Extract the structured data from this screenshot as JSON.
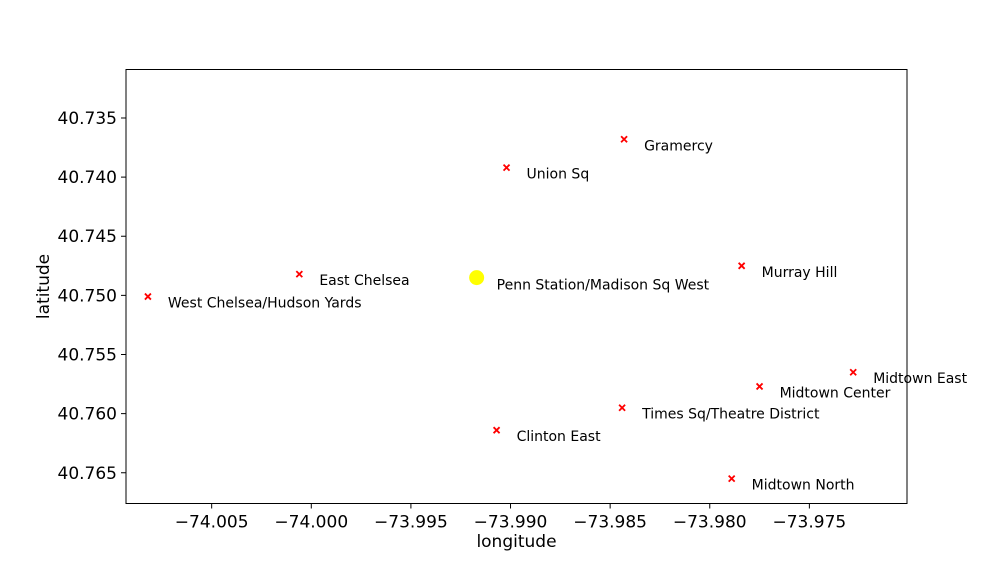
{
  "chart_data": {
    "type": "scatter",
    "title": "",
    "xlabel": "longitude",
    "ylabel": "latitude",
    "xlim": [
      -74.0093,
      -73.9701
    ],
    "ylim": [
      40.7676,
      40.7309
    ],
    "y_inverted": true,
    "xticks": [
      -74.005,
      -74.0,
      -73.995,
      -73.99,
      -73.985,
      -73.98,
      -73.975
    ],
    "xtick_labels": [
      "−74.005",
      "−74.000",
      "−73.995",
      "−73.990",
      "−73.985",
      "−73.980",
      "−73.975"
    ],
    "yticks": [
      40.735,
      40.74,
      40.745,
      40.75,
      40.755,
      40.76,
      40.765
    ],
    "ytick_labels": [
      "40.735",
      "40.740",
      "40.745",
      "40.750",
      "40.755",
      "40.760",
      "40.765"
    ],
    "grid": false,
    "highlight": {
      "name": "Penn Station/Madison Sq West",
      "x": -73.9917,
      "y": 40.7485,
      "color": "#ffff00",
      "marker": "circle"
    },
    "points": [
      {
        "name": "Gramercy",
        "x": -73.9843,
        "y": 40.7368
      },
      {
        "name": "Union Sq",
        "x": -73.9902,
        "y": 40.7392
      },
      {
        "name": "Murray Hill",
        "x": -73.9784,
        "y": 40.7475
      },
      {
        "name": "East Chelsea",
        "x": -74.0006,
        "y": 40.7482
      },
      {
        "name": "West Chelsea/Hudson Yards",
        "x": -74.0082,
        "y": 40.7501
      },
      {
        "name": "Midtown East",
        "x": -73.9728,
        "y": 40.7565
      },
      {
        "name": "Midtown Center",
        "x": -73.9775,
        "y": 40.7577
      },
      {
        "name": "Times Sq/Theatre District",
        "x": -73.9844,
        "y": 40.7595
      },
      {
        "name": "Clinton East",
        "x": -73.9907,
        "y": 40.7614
      },
      {
        "name": "Midtown North",
        "x": -73.9789,
        "y": 40.7655
      }
    ],
    "point_color": "#ff0000",
    "point_marker": "x"
  }
}
